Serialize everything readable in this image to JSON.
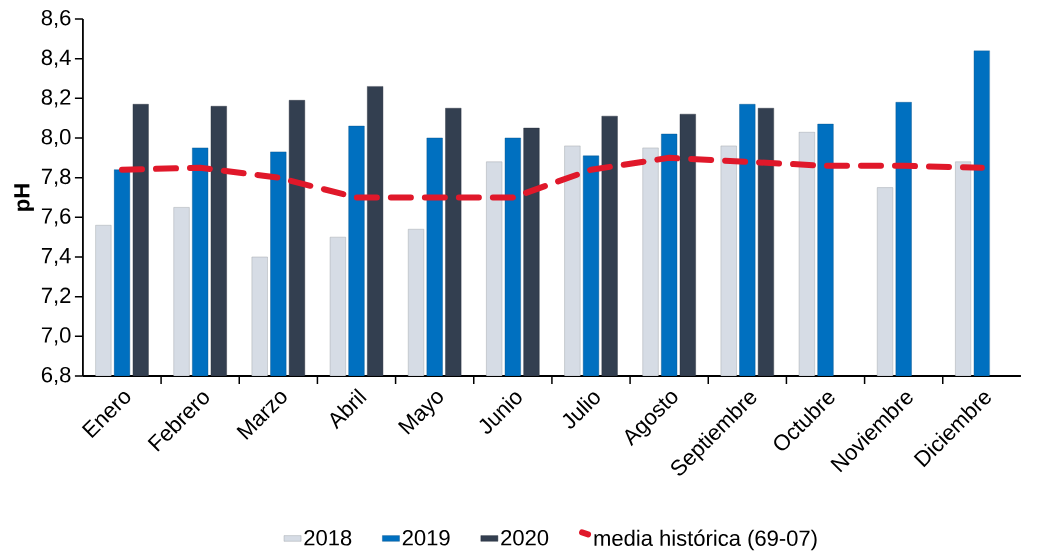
{
  "chart_data": {
    "type": "bar",
    "ylabel": "pH",
    "categories": [
      "Enero",
      "Febrero",
      "Marzo",
      "Abril",
      "Mayo",
      "Junio",
      "Julio",
      "Agosto",
      "Septiembre",
      "Octubre",
      "Noviembre",
      "Diciembre"
    ],
    "series": [
      {
        "name": "2018",
        "color": "#d6dce5",
        "values": [
          7.56,
          7.65,
          7.4,
          7.5,
          7.54,
          7.88,
          7.96,
          7.95,
          7.96,
          8.03,
          7.75,
          7.88
        ]
      },
      {
        "name": "2019",
        "color": "#0070c0",
        "values": [
          7.84,
          7.95,
          7.93,
          8.06,
          8.0,
          8.0,
          7.91,
          8.02,
          8.17,
          8.07,
          8.18,
          8.44
        ]
      },
      {
        "name": "2020",
        "color": "#333f50",
        "values": [
          8.17,
          8.16,
          8.19,
          8.26,
          8.15,
          8.05,
          8.11,
          8.12,
          8.15,
          null,
          null,
          null
        ]
      },
      {
        "name": "media histórica (69-07)",
        "type": "line",
        "line_style": "dashed",
        "color": "#e0182a",
        "values": [
          7.84,
          7.85,
          7.8,
          7.7,
          7.7,
          7.7,
          7.84,
          7.9,
          7.88,
          7.86,
          7.86,
          7.85
        ]
      }
    ],
    "ylim": [
      6.8,
      8.6
    ],
    "yticks": [
      {
        "value": 6.8,
        "label": "6,8"
      },
      {
        "value": 7.0,
        "label": "7,0"
      },
      {
        "value": 7.2,
        "label": "7,2"
      },
      {
        "value": 7.4,
        "label": "7,4"
      },
      {
        "value": 7.6,
        "label": "7,6"
      },
      {
        "value": 7.8,
        "label": "7,8"
      },
      {
        "value": 8.0,
        "label": "8,0"
      },
      {
        "value": 8.2,
        "label": "8,2"
      },
      {
        "value": 8.4,
        "label": "8,4"
      },
      {
        "value": 8.6,
        "label": "8,6"
      }
    ],
    "legend": "bottom",
    "grid": false
  }
}
